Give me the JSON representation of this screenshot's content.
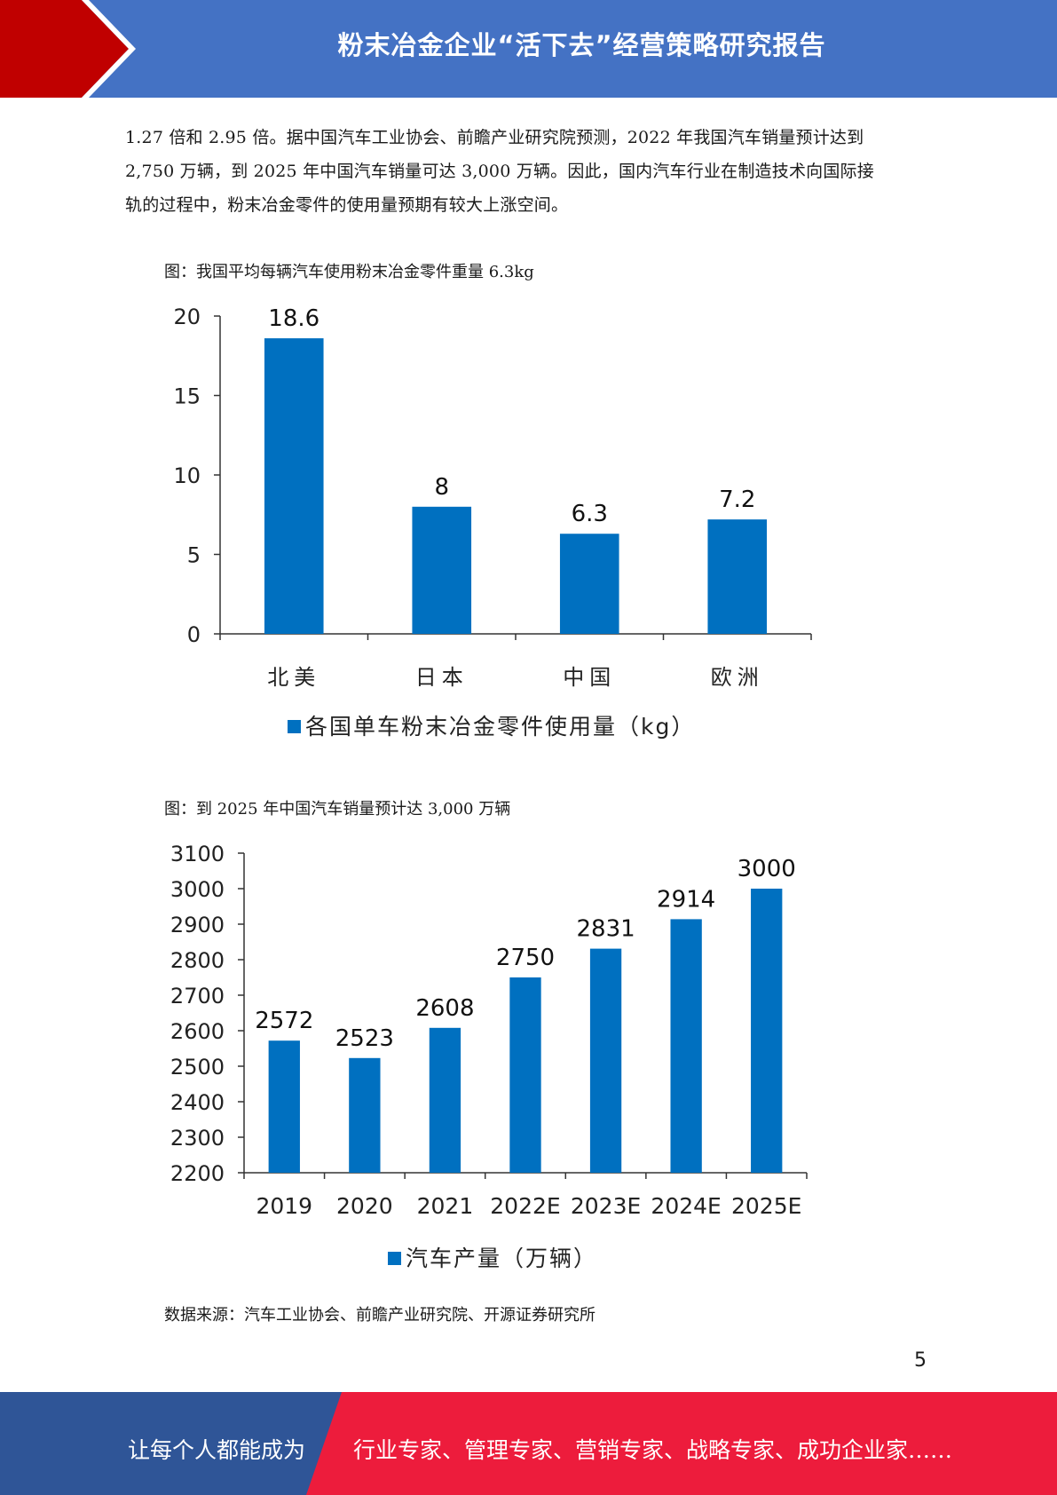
{
  "header": {
    "title": "粉末冶金企业“活下去”经营策略研究报告",
    "colors": {
      "banner": "#4472c4",
      "chevron": "#c00000"
    }
  },
  "body_text": [
    "1.27 倍和 2.95 倍。据中国汽车工业协会、前瞻产业研究院预测，2022 年我国汽车销量预计达到",
    "2,750 万辆，到 2025 年中国汽车销量可达 3,000 万辆。因此，国内汽车行业在制造技术向国际接",
    "轨的过程中，粉末冶金零件的使用量预期有较大上涨空间。"
  ],
  "figure1": {
    "caption": "图：我国平均每辆汽车使用粉末冶金零件重量 6.3kg"
  },
  "figure2": {
    "caption": "图：到 2025 年中国汽车销量预计达 3,000 万辆"
  },
  "source": "数据来源：汽车工业协会、前瞻产业研究院、开源证券研究所",
  "page_number": "5",
  "footer": {
    "left": "让每个人都能成为",
    "right": "行业专家、管理专家、营销专家、战略专家、成功企业家……",
    "colors": {
      "left": "#2f5597",
      "right": "#ed1c3c"
    }
  },
  "chart_data": [
    {
      "type": "bar",
      "categories": [
        "北美",
        "日本",
        "中国",
        "欧洲"
      ],
      "series": [
        {
          "name": "各国单车粉末冶金零件使用量（kg）",
          "values": [
            18.6,
            8,
            6.3,
            7.2
          ]
        }
      ],
      "data_labels": [
        "18.6",
        "8",
        "6.3",
        "7.2"
      ],
      "yticks": [
        "0",
        "5",
        "10",
        "15",
        "20"
      ],
      "ylim": [
        0,
        20
      ],
      "legend": "bottom",
      "bar_color": "#0070c0",
      "grid": false
    },
    {
      "type": "bar",
      "categories": [
        "2019",
        "2020",
        "2021",
        "2022E",
        "2023E",
        "2024E",
        "2025E"
      ],
      "series": [
        {
          "name": "汽车产量（万辆）",
          "values": [
            2572,
            2523,
            2608,
            2750,
            2831,
            2914,
            3000
          ]
        }
      ],
      "data_labels": [
        "2572",
        "2523",
        "2608",
        "2750",
        "2831",
        "2914",
        "3000"
      ],
      "yticks": [
        "2200",
        "2300",
        "2400",
        "2500",
        "2600",
        "2700",
        "2800",
        "2900",
        "3000",
        "3100"
      ],
      "ylim": [
        2200,
        3100
      ],
      "legend": "bottom",
      "bar_color": "#0070c0",
      "grid": false
    }
  ]
}
